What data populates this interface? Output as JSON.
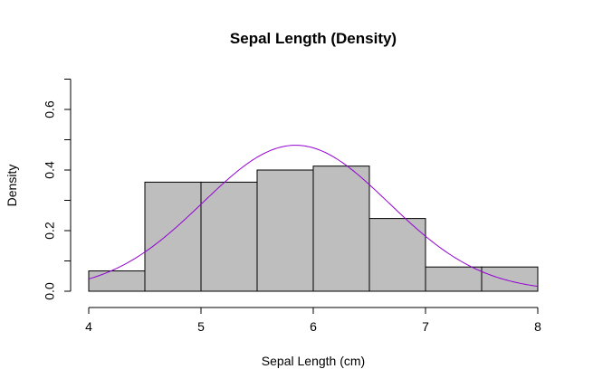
{
  "chart_data": {
    "type": "histogram",
    "title": "Sepal Length (Density)",
    "xlabel": "Sepal Length (cm)",
    "ylabel": "Density",
    "xlim": [
      4,
      8
    ],
    "ylim": [
      0,
      0.7
    ],
    "x_ticks": [
      4,
      5,
      6,
      7,
      8
    ],
    "x_tick_labels": [
      "4",
      "5",
      "6",
      "7",
      "8"
    ],
    "y_ticks": [
      0.0,
      0.2,
      0.4,
      0.6
    ],
    "y_tick_labels": [
      "0.0",
      "0.2",
      "0.4",
      "0.6"
    ],
    "y_minor_ticks": [
      0.1,
      0.3,
      0.5,
      0.7
    ],
    "bins": [
      {
        "x0": 4.0,
        "x1": 4.5,
        "density": 0.067
      },
      {
        "x0": 4.5,
        "x1": 5.0,
        "density": 0.36
      },
      {
        "x0": 5.0,
        "x1": 5.5,
        "density": 0.36
      },
      {
        "x0": 5.5,
        "x1": 6.0,
        "density": 0.4
      },
      {
        "x0": 6.0,
        "x1": 6.5,
        "density": 0.413
      },
      {
        "x0": 6.5,
        "x1": 7.0,
        "density": 0.24
      },
      {
        "x0": 7.0,
        "x1": 7.5,
        "density": 0.08
      },
      {
        "x0": 7.5,
        "x1": 8.0,
        "density": 0.08
      }
    ],
    "bar_fill": "#bebebe",
    "bar_stroke": "#000000",
    "density_curve": {
      "kind": "normal",
      "mean": 5.843,
      "sd": 0.828,
      "range": [
        4.0,
        8.0
      ],
      "color": "#9400d3"
    },
    "grid": false,
    "legend": "none"
  }
}
